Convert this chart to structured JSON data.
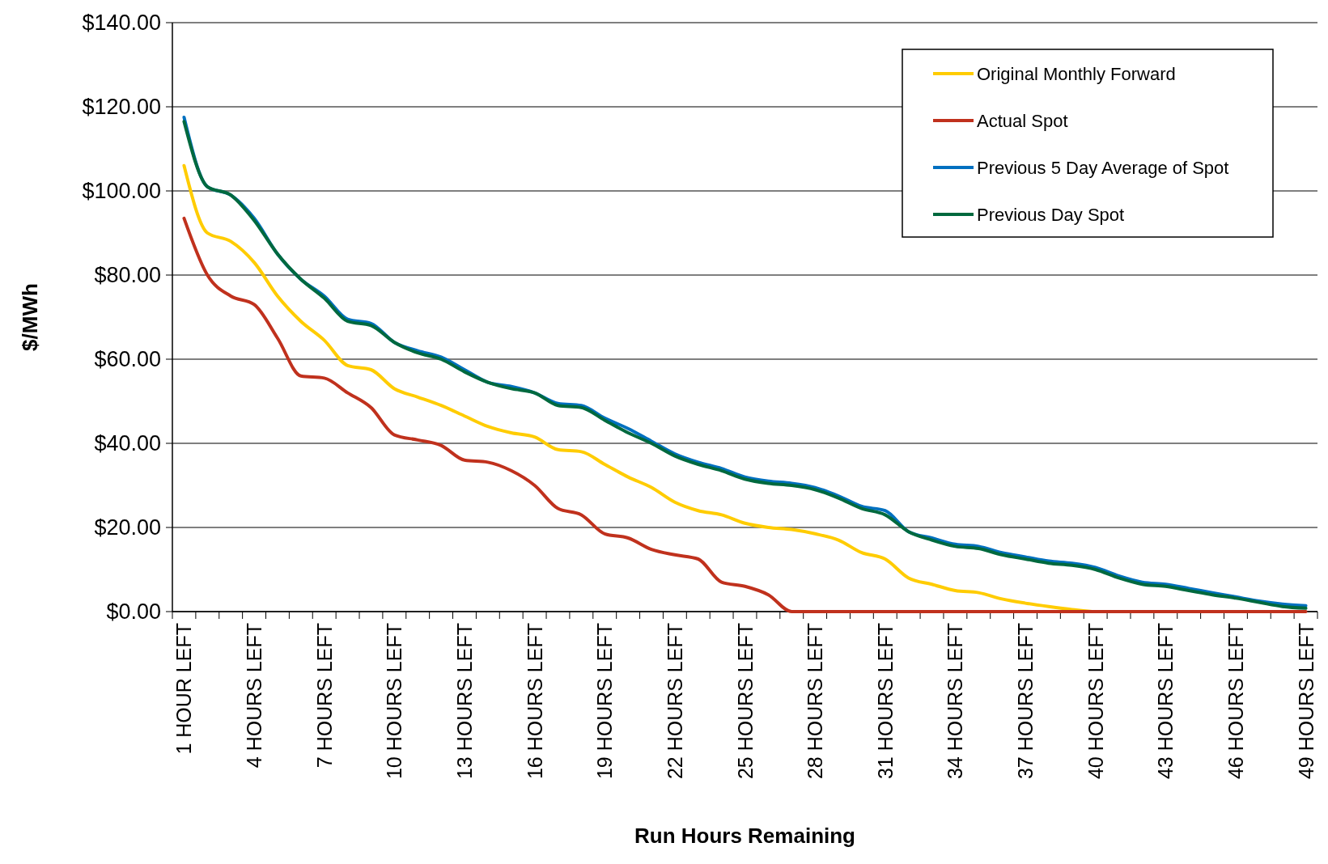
{
  "chart_data": {
    "type": "line",
    "xlabel": "Run Hours Remaining",
    "ylabel": "$/MWh",
    "categories": [
      "1 HOUR LEFT",
      null,
      null,
      "4 HOURS LEFT",
      null,
      null,
      "7 HOURS LEFT",
      null,
      null,
      "10 HOURS LEFT",
      null,
      null,
      "13 HOURS LEFT",
      null,
      null,
      "16 HOURS LEFT",
      null,
      null,
      "19 HOURS LEFT",
      null,
      null,
      "22 HOURS LEFT",
      null,
      null,
      "25 HOURS LEFT",
      null,
      null,
      "28 HOURS LEFT",
      null,
      null,
      "31 HOURS LEFT",
      null,
      null,
      "34 HOURS LEFT",
      null,
      null,
      "37 HOURS LEFT",
      null,
      null,
      "40 HOURS LEFT",
      null,
      null,
      "43 HOURS LEFT",
      null,
      null,
      "46 HOURS LEFT",
      null,
      null,
      "49 HOURS LEFT"
    ],
    "series": [
      {
        "name": "Original Monthly Forward",
        "color": "#ffcc00",
        "values": [
          106,
          90,
          88,
          83,
          75,
          69,
          64.5,
          58.5,
          57.5,
          53,
          51,
          49,
          46.5,
          44,
          42.5,
          41.5,
          38.5,
          38,
          35,
          32,
          29.5,
          26,
          24,
          23,
          21,
          20,
          19.5,
          18.5,
          17,
          14,
          12.5,
          8,
          6.5,
          5,
          4.5,
          3,
          2,
          1.2,
          0.5,
          0,
          0,
          null,
          null,
          null,
          null,
          null,
          null,
          null,
          null
        ]
      },
      {
        "name": "Actual Spot",
        "color": "#c0311d",
        "values": [
          93.5,
          80,
          75,
          73,
          65,
          56,
          55.5,
          52,
          48.5,
          42,
          40.8,
          39.5,
          36,
          35.5,
          33.5,
          30,
          24.5,
          23,
          18.5,
          17.5,
          14.8,
          13.5,
          12.5,
          7,
          6,
          4,
          0,
          0,
          0,
          0,
          0,
          0,
          0,
          0,
          0,
          0,
          0,
          0,
          0,
          0,
          0,
          0,
          0,
          0,
          0,
          0,
          0,
          0,
          0
        ]
      },
      {
        "name": "Previous 5 Day Average of Spot",
        "color": "#0070c0",
        "values": [
          117.5,
          101,
          99,
          93.5,
          85,
          79,
          75,
          69.5,
          68.5,
          64,
          62,
          60.5,
          57.5,
          54.5,
          53.5,
          52,
          49.5,
          49,
          46,
          43.5,
          40.5,
          37.5,
          35.5,
          34,
          32,
          31,
          30.5,
          29.5,
          27.5,
          25,
          24,
          19,
          17.5,
          16,
          15.5,
          14,
          13,
          12,
          11.5,
          10.5,
          8.5,
          7,
          6.5,
          5.5,
          4.5,
          3.5,
          2.5,
          1.8,
          1.4
        ]
      },
      {
        "name": "Previous Day Spot",
        "color": "#00693e",
        "values": [
          116.5,
          101,
          99,
          93,
          85,
          79,
          74.5,
          69,
          68,
          64,
          61.5,
          60,
          57,
          54.5,
          53,
          52,
          49,
          48.5,
          45.5,
          42.5,
          40,
          37,
          35,
          33.5,
          31.5,
          30.5,
          30,
          29,
          27,
          24.5,
          23,
          19,
          17,
          15.5,
          15,
          13.5,
          12.5,
          11.5,
          11,
          10,
          8,
          6.5,
          6,
          5,
          4,
          3.2,
          2.2,
          1.2,
          0.8
        ]
      }
    ],
    "ylim": [
      0,
      140
    ],
    "yticks": [
      {
        "value": 0,
        "label": "$0.00"
      },
      {
        "value": 20,
        "label": "$20.00"
      },
      {
        "value": 40,
        "label": "$40.00"
      },
      {
        "value": 60,
        "label": "$60.00"
      },
      {
        "value": 80,
        "label": "$80.00"
      },
      {
        "value": 100,
        "label": "$100.00"
      },
      {
        "value": 120,
        "label": "$120.00"
      },
      {
        "value": 140,
        "label": "$140.00"
      }
    ],
    "grid": "y",
    "legend": "top right",
    "marker": "none",
    "line_style": "solid"
  }
}
